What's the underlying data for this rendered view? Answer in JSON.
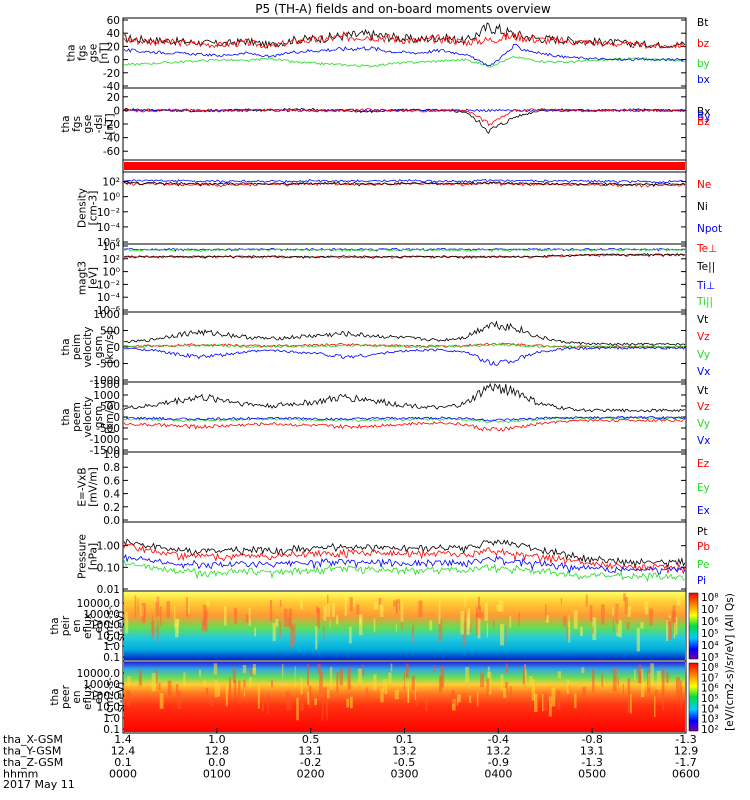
{
  "title": "P5 (TH-A) fields and on-board moments overview",
  "colors": {
    "black": "#000000",
    "red": "#ff0000",
    "green": "#22dd22",
    "blue": "#0000ff"
  },
  "chart_data": [
    {
      "type": "line",
      "panel": "fgs-gse",
      "ylabel": [
        "tha",
        "fgs",
        "gse",
        "[nT]"
      ],
      "ylim": [
        -40,
        60
      ],
      "ytick_labels": [
        "60",
        "40",
        "20",
        "0",
        "-20",
        "-40"
      ],
      "series": [
        {
          "name": "Bt",
          "color": "#000000",
          "values": [
            32,
            30,
            28,
            26,
            24,
            28,
            22,
            30,
            32,
            36,
            38,
            34,
            30,
            34,
            28,
            50,
            38,
            32,
            30,
            28,
            26,
            24,
            22,
            24
          ]
        },
        {
          "name": "bz",
          "color": "#ff0000",
          "values": [
            30,
            28,
            26,
            24,
            22,
            26,
            20,
            28,
            30,
            34,
            36,
            32,
            28,
            32,
            26,
            30,
            36,
            30,
            28,
            26,
            24,
            22,
            20,
            22
          ]
        },
        {
          "name": "by",
          "color": "#22dd22",
          "values": [
            -8,
            -6,
            -4,
            -2,
            0,
            -2,
            2,
            -4,
            -6,
            -8,
            -10,
            -6,
            -4,
            -2,
            0,
            -10,
            4,
            -2,
            -4,
            -2,
            0,
            2,
            0,
            -2
          ]
        },
        {
          "name": "bx",
          "color": "#0000ff",
          "values": [
            14,
            12,
            10,
            8,
            6,
            10,
            4,
            12,
            14,
            16,
            18,
            12,
            10,
            14,
            8,
            -10,
            20,
            10,
            4,
            2,
            0,
            0,
            0,
            0
          ]
        }
      ]
    },
    {
      "type": "line",
      "panel": "fgs-gse-dsl",
      "ylabel": [
        "tha",
        "fgs",
        "gse",
        "-dsl",
        "[nT]"
      ],
      "ylim": [
        -70,
        30
      ],
      "ytick_labels": [
        "20",
        "0",
        "-20",
        "-40",
        "-60"
      ],
      "series": [
        {
          "name": "Bx",
          "color": "#000000",
          "values": [
            2,
            1,
            0,
            -1,
            0,
            1,
            0,
            2,
            1,
            0,
            -2,
            0,
            1,
            0,
            -2,
            -30,
            -10,
            0,
            1,
            0,
            0,
            1,
            0,
            0
          ]
        },
        {
          "name": "By",
          "color": "#0000ff",
          "values": [
            0,
            0,
            0,
            0,
            0,
            0,
            0,
            0,
            0,
            0,
            0,
            0,
            0,
            0,
            0,
            0,
            0,
            0,
            0,
            0,
            0,
            0,
            0,
            0
          ]
        },
        {
          "name": "Bz",
          "color": "#ff0000",
          "values": [
            0,
            -1,
            1,
            0,
            -1,
            0,
            1,
            0,
            -1,
            0,
            1,
            0,
            -1,
            0,
            1,
            -20,
            0,
            1,
            0,
            -1,
            0,
            0,
            0,
            0
          ]
        }
      ]
    },
    {
      "type": "line",
      "panel": "density",
      "ylabel": [
        "Density",
        "[cm-3]"
      ],
      "ylog": true,
      "ylim": [
        1e-06,
        1000.0
      ],
      "ytick_labels": [
        "10²",
        "10⁰",
        "10⁻²",
        "10⁻⁴",
        "10⁻⁶"
      ],
      "series": [
        {
          "name": "Ne",
          "color": "#ff0000",
          "values": [
            60,
            50,
            45,
            40,
            40,
            45,
            40,
            45,
            50,
            45,
            40,
            45,
            50,
            45,
            40,
            60,
            50,
            45,
            40,
            40,
            35,
            35,
            35,
            35
          ]
        },
        {
          "name": "Ni",
          "color": "#000000",
          "values": [
            70,
            60,
            55,
            50,
            50,
            55,
            50,
            55,
            60,
            55,
            50,
            55,
            60,
            55,
            50,
            70,
            60,
            55,
            50,
            50,
            45,
            45,
            45,
            45
          ]
        },
        {
          "name": "Npot",
          "color": "#0000ff",
          "values": [
            150,
            130,
            120,
            110,
            110,
            120,
            110,
            120,
            130,
            120,
            110,
            120,
            130,
            120,
            110,
            150,
            130,
            120,
            110,
            110,
            100,
            100,
            100,
            100
          ]
        }
      ]
    },
    {
      "type": "line",
      "panel": "temperature",
      "ylabel": [
        "magt3",
        "[eV]"
      ],
      "ylog": true,
      "ylim": [
        1e-06,
        10000.0
      ],
      "ytick_labels": [
        "10⁴",
        "10²",
        "10⁰",
        "10⁻²",
        "10⁻⁴",
        "10⁻⁶"
      ],
      "series": [
        {
          "name": "Te⊥",
          "color": "#ff0000",
          "values": [
            200,
            200,
            200,
            200,
            200,
            200,
            200,
            200,
            200,
            200,
            200,
            200,
            200,
            200,
            200,
            200,
            200,
            200,
            300,
            400,
            400,
            400,
            400,
            400
          ]
        },
        {
          "name": "Te||",
          "color": "#000000",
          "values": [
            220,
            220,
            220,
            220,
            220,
            220,
            220,
            220,
            220,
            220,
            220,
            220,
            220,
            220,
            220,
            220,
            220,
            220,
            330,
            450,
            450,
            450,
            450,
            450
          ]
        },
        {
          "name": "Ti⊥",
          "color": "#0000ff",
          "values": [
            3000,
            3000,
            3000,
            3000,
            3000,
            3000,
            3000,
            3000,
            3000,
            3000,
            3000,
            3000,
            3000,
            3000,
            3000,
            3000,
            3000,
            3000,
            3000,
            3000,
            3000,
            3000,
            3000,
            3000
          ]
        },
        {
          "name": "Ti||",
          "color": "#22dd22",
          "values": [
            2500,
            2500,
            2500,
            2500,
            2500,
            2500,
            2500,
            2500,
            2500,
            2500,
            2500,
            2500,
            2500,
            2500,
            2500,
            2500,
            2500,
            2500,
            2500,
            2500,
            2500,
            2500,
            2500,
            2500
          ]
        }
      ]
    },
    {
      "type": "line",
      "panel": "peim-velocity",
      "ylabel": [
        "tha",
        "peim",
        "velocity",
        "gsm",
        "[km/s]"
      ],
      "ylim": [
        -1000,
        1000
      ],
      "ytick_labels": [
        "1000",
        "500",
        "0",
        "-500",
        "-1000"
      ],
      "series": [
        {
          "name": "Vt",
          "color": "#000000",
          "values": [
            150,
            200,
            350,
            450,
            400,
            300,
            250,
            300,
            350,
            400,
            350,
            300,
            250,
            200,
            300,
            700,
            600,
            300,
            150,
            100,
            80,
            80,
            80,
            80
          ]
        },
        {
          "name": "Vz",
          "color": "#ff0000",
          "values": [
            20,
            30,
            50,
            80,
            60,
            40,
            30,
            40,
            60,
            80,
            60,
            40,
            30,
            20,
            40,
            100,
            80,
            40,
            20,
            10,
            10,
            10,
            10,
            10
          ]
        },
        {
          "name": "Vy",
          "color": "#22dd22",
          "values": [
            10,
            20,
            30,
            50,
            40,
            20,
            10,
            20,
            30,
            50,
            40,
            20,
            10,
            10,
            20,
            60,
            50,
            20,
            10,
            0,
            0,
            0,
            0,
            0
          ]
        },
        {
          "name": "Vx",
          "color": "#0000ff",
          "values": [
            -40,
            -80,
            -200,
            -300,
            -250,
            -150,
            -100,
            -150,
            -200,
            -300,
            -250,
            -150,
            -100,
            -80,
            -150,
            -500,
            -400,
            -150,
            -60,
            -40,
            -30,
            -30,
            -30,
            -30
          ]
        }
      ]
    },
    {
      "type": "line",
      "panel": "peem-velocity",
      "ylabel": [
        "tha",
        "peem",
        "velocity",
        "gsm",
        "[km/s]"
      ],
      "ylim": [
        -1500,
        1500
      ],
      "ytick_labels": [
        "1500",
        "1000",
        "500",
        "0",
        "-500",
        "-1000",
        "-1500"
      ],
      "series": [
        {
          "name": "Vt",
          "color": "#000000",
          "values": [
            400,
            500,
            700,
            900,
            800,
            600,
            500,
            600,
            700,
            900,
            800,
            600,
            500,
            400,
            600,
            1400,
            1200,
            600,
            400,
            300,
            300,
            300,
            300,
            300
          ]
        },
        {
          "name": "Vz",
          "color": "#ff0000",
          "values": [
            -300,
            -350,
            -400,
            -450,
            -400,
            -350,
            -300,
            -350,
            -400,
            -450,
            -400,
            -350,
            -300,
            -250,
            -350,
            -600,
            -500,
            -300,
            -200,
            -150,
            -150,
            -150,
            -150,
            -150
          ]
        },
        {
          "name": "Vy",
          "color": "#22dd22",
          "values": [
            -100,
            -100,
            -150,
            -150,
            -150,
            -100,
            -100,
            -100,
            -150,
            -150,
            -150,
            -100,
            -100,
            -100,
            -100,
            -200,
            -200,
            -100,
            -50,
            -50,
            -50,
            -50,
            -50,
            -50
          ]
        },
        {
          "name": "Vx",
          "color": "#0000ff",
          "values": [
            -50,
            -60,
            -80,
            -100,
            -80,
            -60,
            -50,
            -60,
            -80,
            -100,
            -80,
            -60,
            -50,
            -40,
            -60,
            -150,
            -120,
            -60,
            -40,
            -30,
            -30,
            -30,
            -30,
            -30
          ]
        }
      ]
    },
    {
      "type": "line",
      "panel": "efield",
      "ylabel": [
        "E=-VxB",
        "[mV/m]"
      ],
      "ylim": [
        0,
        1
      ],
      "ytick_labels": [
        "1.0",
        "0.8",
        "0.6",
        "0.4",
        "0.2",
        "0.0"
      ],
      "series": [
        {
          "name": "Ez",
          "color": "#ff0000",
          "values": []
        },
        {
          "name": "Ey",
          "color": "#22dd22",
          "values": []
        },
        {
          "name": "Ex",
          "color": "#0000ff",
          "values": []
        }
      ]
    },
    {
      "type": "line",
      "panel": "pressure",
      "ylabel": [
        "Pressure",
        "[nPa]"
      ],
      "ylog": true,
      "ylim": [
        0.01,
        10
      ],
      "ytick_labels": [
        "1.00",
        "0.10",
        "0.01"
      ],
      "series": [
        {
          "name": "Pt",
          "color": "#000000",
          "values": [
            1.8,
            1.0,
            0.7,
            0.6,
            0.6,
            0.7,
            0.6,
            0.7,
            0.8,
            0.9,
            0.9,
            0.8,
            0.7,
            0.8,
            0.7,
            1.4,
            1.1,
            0.7,
            0.4,
            0.25,
            0.2,
            0.18,
            0.18,
            0.18
          ]
        },
        {
          "name": "Pb",
          "color": "#ff0000",
          "values": [
            1.2,
            0.6,
            0.4,
            0.35,
            0.3,
            0.4,
            0.3,
            0.4,
            0.45,
            0.5,
            0.5,
            0.45,
            0.4,
            0.45,
            0.35,
            0.6,
            0.4,
            0.3,
            0.25,
            0.14,
            0.12,
            0.1,
            0.1,
            0.1
          ]
        },
        {
          "name": "Pe",
          "color": "#22dd22",
          "values": [
            0.15,
            0.1,
            0.07,
            0.06,
            0.06,
            0.07,
            0.06,
            0.07,
            0.08,
            0.09,
            0.09,
            0.08,
            0.07,
            0.08,
            0.07,
            0.1,
            0.09,
            0.07,
            0.05,
            0.04,
            0.04,
            0.04,
            0.04,
            0.04
          ]
        },
        {
          "name": "Pi",
          "color": "#0000ff",
          "values": [
            0.3,
            0.2,
            0.15,
            0.14,
            0.13,
            0.15,
            0.13,
            0.15,
            0.17,
            0.19,
            0.18,
            0.17,
            0.15,
            0.17,
            0.15,
            0.25,
            0.2,
            0.15,
            0.11,
            0.09,
            0.08,
            0.08,
            0.08,
            0.08
          ]
        }
      ]
    },
    {
      "type": "heatmap",
      "panel": "peir-eflux",
      "ylabel": [
        "tha",
        "peir",
        "en",
        "eflux",
        "eV",
        "(cm2-s-",
        "sr-eV)"
      ],
      "ylog": true,
      "ytick_labels": [
        "10000.0",
        "1000.0",
        "100.0",
        "10.0",
        "1.0",
        "0.1"
      ],
      "colorbar_labels": [
        "10⁸",
        "10⁷",
        "10⁶",
        "10⁵",
        "10⁴",
        "10³"
      ]
    },
    {
      "type": "heatmap",
      "panel": "peer-eflux",
      "ylabel": [
        "tha",
        "peer",
        "en",
        "eflux",
        "eV",
        "(cm2-s-",
        "sr-eV)"
      ],
      "ylog": true,
      "ytick_labels": [
        "10000.0",
        "1000.0",
        "100.0",
        "10.0",
        "1.0",
        "0.1"
      ],
      "colorbar_labels": [
        "10⁸",
        "10⁷",
        "10⁶",
        "10⁵",
        "10⁴",
        "10³",
        "10²"
      ]
    }
  ],
  "colorbar_title": "[eV/(cm2-s)/sr/eV] (All Qs)",
  "x_axis": {
    "rows": [
      {
        "label": "tha_X-GSM",
        "values": [
          "1.4",
          "1.0",
          "0.5",
          "0.1",
          "-0.4",
          "-0.8",
          "-1.3"
        ]
      },
      {
        "label": "tha_Y-GSM",
        "values": [
          "12.4",
          "12.8",
          "13.1",
          "13.2",
          "13.2",
          "13.1",
          "12.9"
        ]
      },
      {
        "label": "tha_Z-GSM",
        "values": [
          "0.1",
          "0.0",
          "-0.2",
          "-0.5",
          "-0.9",
          "-1.3",
          "-1.7"
        ]
      },
      {
        "label": "hhmm",
        "values": [
          "0000",
          "0100",
          "0200",
          "0300",
          "0400",
          "0500",
          "0600"
        ]
      }
    ],
    "date": "2017 May 11"
  }
}
